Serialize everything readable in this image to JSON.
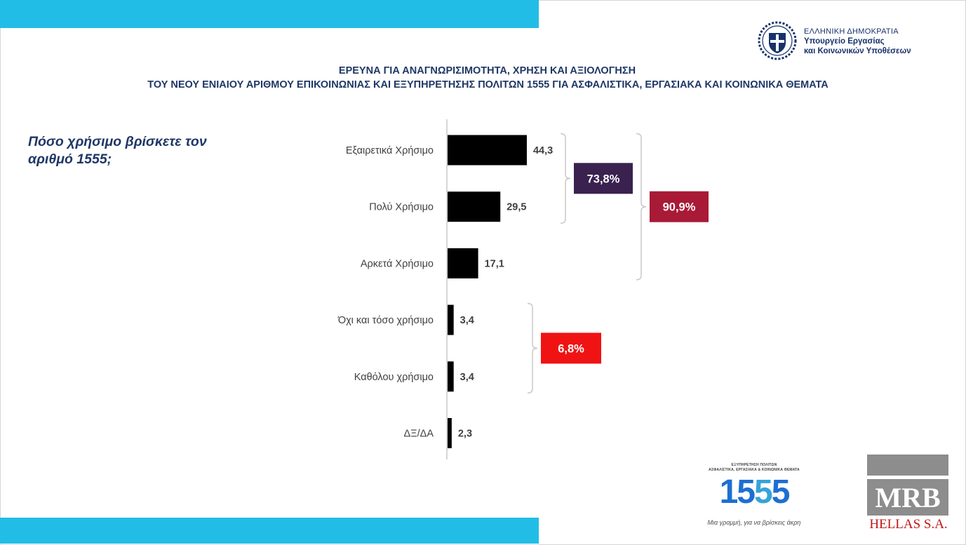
{
  "header": {
    "ministry": {
      "line1": "ΕΛΛΗΝΙΚΗ ΔΗΜΟΚΡΑΤΙΑ",
      "line2": "Υπουργείο Εργασίας",
      "line3": "και Κοινωνικών Υποθέσεων",
      "emblem_icon": "greek-coat-of-arms-icon"
    },
    "title_line1": "ΕΡΕΥΝΑ ΓΙΑ ΑΝΑΓΝΩΡΙΣΙΜΟΤΗΤΑ, ΧΡΗΣΗ ΚΑΙ ΑΞΙΟΛΟΓΗΣΗ",
    "title_line2": "ΤΟΥ ΝΕΟΥ ΕΝΙΑΙΟΥ ΑΡΙΘΜΟΥ ΕΠΙΚΟΙΝΩΝΙΑΣ ΚΑΙ ΕΞΥΠΗΡΕΤΗΣΗΣ ΠΟΛΙΤΩΝ 1555  ΓΙΑ ΑΣΦΑΛΙΣΤΙΚΑ, ΕΡΓΑΣΙΑΚΑ ΚΑΙ ΚΟΙΝΩΝΙΚΑ ΘΕΜΑΤΑ"
  },
  "question": "Πόσο χρήσιμο βρίσκετε τον αριθμό 1555;",
  "chart_data": {
    "type": "bar",
    "orientation": "horizontal",
    "categories": [
      "Εξαιρετικά Χρήσιμο",
      "Πολύ Χρήσιμο",
      "Αρκετά Χρήσιμο",
      "Όχι και τόσο χρήσιμο",
      "Καθόλου χρήσιμο",
      "ΔΞ/ΔΑ"
    ],
    "values": [
      44.3,
      29.5,
      17.1,
      3.4,
      3.4,
      2.3
    ],
    "value_labels": [
      "44,3",
      "29,5",
      "17,1",
      "3,4",
      "3,4",
      "2,3"
    ],
    "bar_color": "#000000",
    "xlim": [
      0,
      100
    ],
    "grid": false,
    "groups": [
      {
        "label": "73,8%",
        "categories": [
          0,
          1
        ],
        "color": "#3a2150"
      },
      {
        "label": "90,9%",
        "categories": [
          0,
          1,
          2
        ],
        "color": "#a81a36"
      },
      {
        "label": "6,8%",
        "categories": [
          3,
          4
        ],
        "color": "#f01313"
      }
    ]
  },
  "footer": {
    "logo_1555": {
      "small_line1": "ΕΞΥΠΗΡΕΤΗΣΗ ΠΟΛΙΤΩΝ",
      "small_line2": "ΑΣΦΑΛΙΣΤΙΚΑ, ΕΡΓΑΣΙΑΚΑ & ΚΟΙΝΩΝΙΚΑ ΘΕΜΑΤΑ",
      "number_part1": "15",
      "number_part2": "5",
      "number_part3": "5",
      "tagline": "Μια γραμμή, για να βρίσκεις άκρη"
    },
    "mrb": {
      "name": "MRB",
      "subtitle": "HELLAS S.A."
    }
  },
  "colors": {
    "accent_band": "#22bde6",
    "title_text": "#1e3766"
  }
}
